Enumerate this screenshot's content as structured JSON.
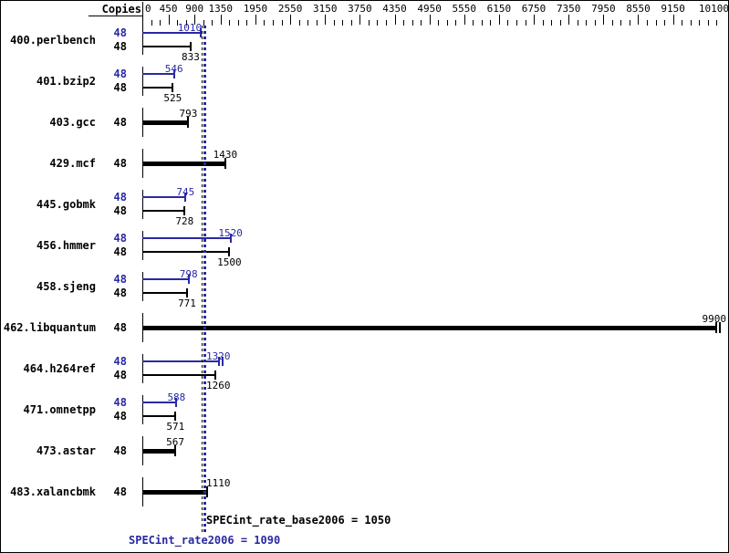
{
  "chart_data": {
    "type": "bar",
    "orientation": "horizontal",
    "copies_header": "Copies",
    "axis": {
      "min": 0,
      "max": 10100,
      "minor_step": 150,
      "labeled_ticks": [
        0,
        450,
        900,
        1350,
        1950,
        2550,
        3150,
        3750,
        4350,
        4950,
        5550,
        6150,
        6750,
        7350,
        7950,
        8550,
        9150,
        10100
      ],
      "position": "top"
    },
    "benchmarks": [
      {
        "name": "400.perlbench",
        "bars": [
          {
            "kind": "peak",
            "copies": 48,
            "value": 1010,
            "label_align": "end"
          },
          {
            "kind": "base",
            "copies": 48,
            "value": 833
          }
        ]
      },
      {
        "name": "401.bzip2",
        "bars": [
          {
            "kind": "peak",
            "copies": 48,
            "value": 546
          },
          {
            "kind": "base",
            "copies": 48,
            "value": 525
          }
        ]
      },
      {
        "name": "403.gcc",
        "bars": [
          {
            "kind": "base+peak",
            "copies": 48,
            "value": 793
          }
        ]
      },
      {
        "name": "429.mcf",
        "bars": [
          {
            "kind": "base+peak",
            "copies": 48,
            "value": 1430
          }
        ]
      },
      {
        "name": "445.gobmk",
        "bars": [
          {
            "kind": "peak",
            "copies": 48,
            "value": 745
          },
          {
            "kind": "base",
            "copies": 48,
            "value": 728
          }
        ]
      },
      {
        "name": "456.hmmer",
        "bars": [
          {
            "kind": "peak",
            "copies": 48,
            "value": 1520
          },
          {
            "kind": "base",
            "copies": 48,
            "value": 1500
          }
        ]
      },
      {
        "name": "458.sjeng",
        "bars": [
          {
            "kind": "peak",
            "copies": 48,
            "value": 798
          },
          {
            "kind": "base",
            "copies": 48,
            "value": 771
          }
        ]
      },
      {
        "name": "462.libquantum",
        "bars": [
          {
            "kind": "base+peak",
            "copies": 48,
            "value": 9900,
            "cap": "double",
            "label_align": "edge"
          }
        ]
      },
      {
        "name": "464.h264ref",
        "bars": [
          {
            "kind": "peak",
            "copies": 48,
            "value": 1320,
            "cap": "double",
            "label_align": "after_line"
          },
          {
            "kind": "base",
            "copies": 48,
            "value": 1260,
            "label_align": "after_line"
          }
        ]
      },
      {
        "name": "471.omnetpp",
        "bars": [
          {
            "kind": "peak",
            "copies": 48,
            "value": 588
          },
          {
            "kind": "base",
            "copies": 48,
            "value": 571
          }
        ]
      },
      {
        "name": "473.astar",
        "bars": [
          {
            "kind": "base+peak",
            "copies": 48,
            "value": 567
          }
        ]
      },
      {
        "name": "483.xalancbmk",
        "bars": [
          {
            "kind": "base+peak",
            "copies": 48,
            "value": 1110,
            "label_align": "after_line"
          }
        ]
      }
    ],
    "reference_lines": [
      {
        "name": "base_result",
        "value": 1050,
        "color": "#000000",
        "style": "dotted"
      },
      {
        "name": "peak_result",
        "value": 1090,
        "color": "#2929a3",
        "style": "dotted"
      }
    ],
    "summary": {
      "base": {
        "metric": "SPECint_rate_base2006",
        "value": 1050,
        "text": "SPECint_rate_base2006 = 1050"
      },
      "peak": {
        "metric": "SPECint_rate2006",
        "value": 1090,
        "text": "SPECint_rate2006 = 1090"
      }
    },
    "colors": {
      "peak_blue": "#2929a3",
      "base_black": "#000000",
      "background": "#ffffff"
    }
  }
}
